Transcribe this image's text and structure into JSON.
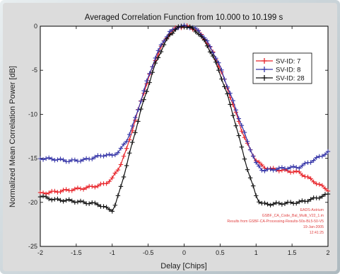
{
  "chart_data": {
    "type": "line",
    "title": "Averaged Correlation Function from 10.000 to 10.199 s",
    "xlabel": "Delay [Chips]",
    "ylabel": "Normalized Mean Correlation Power [dB]",
    "xlim": [
      -2,
      2
    ],
    "ylim": [
      -25,
      0
    ],
    "xticks": [
      "-2",
      "-1.5",
      "-1",
      "-0.5",
      "0",
      "0.5",
      "1",
      "1.5",
      "2"
    ],
    "yticks": [
      "0",
      "-5",
      "-10",
      "-15",
      "-20",
      "-25"
    ],
    "grid": false,
    "legend_position": "top-right",
    "series": [
      {
        "name": "SV-ID: 7",
        "color": "#e8242a",
        "marker": "plus",
        "x": [
          -2.0,
          -1.8,
          -1.6,
          -1.4,
          -1.2,
          -1.1,
          -1.0,
          -0.9,
          -0.8,
          -0.7,
          -0.6,
          -0.5,
          -0.4,
          -0.3,
          -0.2,
          -0.1,
          0.0,
          0.1,
          0.2,
          0.3,
          0.4,
          0.5,
          0.6,
          0.7,
          0.8,
          0.9,
          1.0,
          1.1,
          1.2,
          1.4,
          1.6,
          1.8,
          2.0
        ],
        "y": [
          -19.0,
          -18.8,
          -18.6,
          -18.4,
          -18.1,
          -17.9,
          -17.3,
          -16.0,
          -14.0,
          -11.2,
          -8.5,
          -6.0,
          -3.8,
          -2.0,
          -0.8,
          -0.15,
          0.0,
          -0.15,
          -0.6,
          -1.6,
          -3.0,
          -4.8,
          -7.0,
          -9.4,
          -11.8,
          -13.8,
          -15.2,
          -16.0,
          -16.2,
          -16.4,
          -16.6,
          -17.6,
          -18.6
        ]
      },
      {
        "name": "SV-ID: 8",
        "color": "#3636a8",
        "marker": "plus",
        "x": [
          -2.0,
          -1.8,
          -1.6,
          -1.4,
          -1.2,
          -1.1,
          -1.0,
          -0.9,
          -0.8,
          -0.7,
          -0.6,
          -0.5,
          -0.4,
          -0.3,
          -0.2,
          -0.1,
          0.0,
          0.1,
          0.2,
          0.3,
          0.4,
          0.5,
          0.6,
          0.7,
          0.8,
          0.9,
          1.0,
          1.1,
          1.2,
          1.4,
          1.6,
          1.8,
          2.0
        ],
        "y": [
          -15.0,
          -15.1,
          -15.3,
          -15.2,
          -14.8,
          -14.6,
          -14.7,
          -14.2,
          -13.0,
          -11.0,
          -8.4,
          -5.8,
          -3.6,
          -1.8,
          -0.7,
          -0.1,
          0.0,
          -0.1,
          -0.5,
          -1.5,
          -2.9,
          -4.6,
          -6.8,
          -9.0,
          -11.3,
          -13.5,
          -15.6,
          -16.4,
          -16.3,
          -16.1,
          -16.0,
          -15.2,
          -14.3
        ]
      },
      {
        "name": "SV-ID: 28",
        "color": "#111111",
        "marker": "plus",
        "x": [
          -2.0,
          -1.8,
          -1.6,
          -1.4,
          -1.2,
          -1.1,
          -1.0,
          -0.95,
          -0.9,
          -0.8,
          -0.7,
          -0.6,
          -0.5,
          -0.4,
          -0.3,
          -0.2,
          -0.1,
          0.0,
          0.1,
          0.2,
          0.3,
          0.4,
          0.5,
          0.6,
          0.7,
          0.8,
          0.9,
          1.0,
          1.05,
          1.1,
          1.2,
          1.4,
          1.6,
          1.8,
          2.0
        ],
        "y": [
          -19.3,
          -19.7,
          -19.8,
          -20.0,
          -20.2,
          -20.6,
          -20.9,
          -20.2,
          -18.8,
          -15.8,
          -12.6,
          -9.5,
          -6.8,
          -4.3,
          -2.4,
          -1.0,
          -0.2,
          0.0,
          -0.2,
          -0.8,
          -1.9,
          -3.4,
          -5.4,
          -7.8,
          -10.6,
          -13.8,
          -16.8,
          -19.2,
          -20.0,
          -20.2,
          -20.2,
          -20.1,
          -20.0,
          -19.6,
          -19.1
        ]
      }
    ],
    "annotation": [
      "EADS-Astrium",
      "GSBF_CA_Code_Bal_Multi_V22_1.m",
      "Results from GSBF-CA-Processing-Results-50s-BL5-50-V5",
      "19-Jan-2005",
      "12:41:25"
    ]
  }
}
